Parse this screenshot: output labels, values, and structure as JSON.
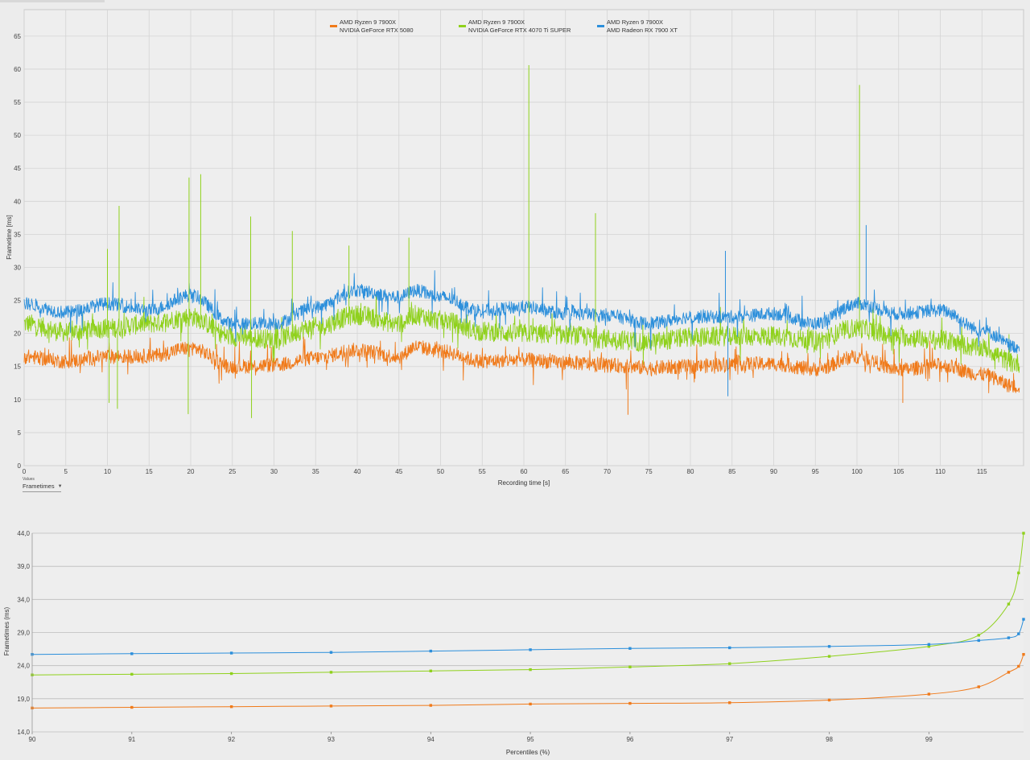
{
  "colors": {
    "orange": "#f07a1a",
    "green": "#8fd11c",
    "blue": "#2c8fdb",
    "grid": "#d4d4d4",
    "plot_bg": "#eeeeee"
  },
  "values_control": {
    "label": "Values",
    "selected": "Frametimes",
    "caret_icon": "chevron-down-icon"
  },
  "chart_data": [
    {
      "type": "line",
      "xlabel": "Recording time [s]",
      "ylabel": "Frametime [ms]",
      "xlim": [
        0,
        120
      ],
      "ylim": [
        0,
        69
      ],
      "x_ticks": [
        0,
        5,
        10,
        15,
        20,
        25,
        30,
        35,
        40,
        45,
        50,
        55,
        60,
        65,
        70,
        75,
        80,
        85,
        90,
        95,
        100,
        105,
        110,
        115
      ],
      "y_ticks": [
        0,
        5,
        10,
        15,
        20,
        25,
        30,
        35,
        40,
        45,
        50,
        55,
        60,
        65
      ],
      "grid": true,
      "legend_position": "top-center",
      "series": [
        {
          "name": "AMD Ryzen 9 7900X\nNVIDIA GeForce RTX 5080",
          "color": "#f07a1a",
          "x": [
            0,
            5,
            10,
            15,
            20,
            25,
            30,
            35,
            40,
            45,
            47,
            50,
            55,
            60,
            65,
            70,
            75,
            80,
            85,
            90,
            95,
            100,
            105,
            110,
            115,
            119
          ],
          "y": [
            16.5,
            15.8,
            16.5,
            16.6,
            17.8,
            15.0,
            15.2,
            16.3,
            17.5,
            16.5,
            18.0,
            17.3,
            15.8,
            16.0,
            15.6,
            15.2,
            14.8,
            15.0,
            15.4,
            15.4,
            14.6,
            16.5,
            14.5,
            15.2,
            13.8,
            12.0
          ]
        },
        {
          "name": "AMD Ryzen 9 7900X\nNVIDIA GeForce RTX 4070 Ti SUPER",
          "color": "#8fd11c",
          "x": [
            0,
            5,
            10,
            15,
            20,
            25,
            30,
            35,
            40,
            45,
            47,
            50,
            55,
            60,
            65,
            70,
            75,
            80,
            85,
            90,
            95,
            100,
            105,
            110,
            115,
            119
          ],
          "y": [
            21.5,
            20.2,
            20.8,
            21.5,
            22.5,
            19.5,
            19.2,
            21.0,
            22.8,
            21.5,
            22.8,
            22.0,
            20.3,
            20.0,
            19.8,
            19.2,
            18.7,
            19.4,
            19.6,
            19.6,
            19.0,
            20.8,
            19.5,
            19.0,
            17.8,
            15.5
          ]
        },
        {
          "name": "AMD Ryzen 9 7900X\nAMD Radeon RX 7900 XT",
          "color": "#2c8fdb",
          "x": [
            0,
            5,
            10,
            15,
            20,
            25,
            30,
            35,
            40,
            45,
            47,
            50,
            55,
            60,
            65,
            70,
            75,
            80,
            85,
            90,
            95,
            100,
            105,
            110,
            115,
            119
          ],
          "y": [
            24.5,
            23.2,
            24.5,
            23.5,
            25.8,
            21.5,
            21.5,
            24.0,
            26.5,
            25.5,
            26.5,
            25.5,
            23.5,
            24.0,
            23.0,
            22.8,
            21.5,
            22.5,
            22.5,
            23.0,
            21.5,
            24.5,
            23.0,
            23.5,
            20.5,
            18.0
          ]
        }
      ],
      "spikes": [
        {
          "series": 1,
          "x": 10.0,
          "y": 32.8
        },
        {
          "series": 1,
          "x": 11.4,
          "y": 39.3
        },
        {
          "series": 1,
          "x": 19.8,
          "y": 43.6
        },
        {
          "series": 1,
          "x": 21.2,
          "y": 44.1
        },
        {
          "series": 1,
          "x": 27.2,
          "y": 37.7
        },
        {
          "series": 1,
          "x": 32.2,
          "y": 35.5
        },
        {
          "series": 1,
          "x": 39.0,
          "y": 33.3
        },
        {
          "series": 1,
          "x": 46.2,
          "y": 34.5
        },
        {
          "series": 1,
          "x": 60.6,
          "y": 60.6
        },
        {
          "series": 1,
          "x": 68.6,
          "y": 38.2
        },
        {
          "series": 1,
          "x": 100.3,
          "y": 57.6
        },
        {
          "series": 2,
          "x": 101.1,
          "y": 36.4
        },
        {
          "series": 2,
          "x": 84.2,
          "y": 32.5
        }
      ],
      "dips": [
        {
          "series": 1,
          "x": 10.2,
          "y": 9.5
        },
        {
          "series": 1,
          "x": 11.2,
          "y": 8.6
        },
        {
          "series": 1,
          "x": 19.7,
          "y": 7.8
        },
        {
          "series": 1,
          "x": 27.3,
          "y": 7.2
        },
        {
          "series": 0,
          "x": 72.5,
          "y": 7.7
        },
        {
          "series": 0,
          "x": 105.5,
          "y": 9.5
        },
        {
          "series": 2,
          "x": 84.5,
          "y": 10.5
        }
      ]
    },
    {
      "type": "line",
      "xlabel": "Percentiles (%)",
      "ylabel": "Frametimes (ms)",
      "xlim": [
        90,
        99.95
      ],
      "ylim": [
        14.0,
        44.0
      ],
      "x_ticks": [
        90,
        91,
        92,
        93,
        94,
        95,
        96,
        97,
        98,
        99
      ],
      "y_ticks": [
        "14,0",
        "19,0",
        "24,0",
        "29,0",
        "34,0",
        "39,0",
        "44,0"
      ],
      "grid": true,
      "series": [
        {
          "name": "AMD Ryzen 9 7900X\nNVIDIA GeForce RTX 5080",
          "color": "#f07a1a",
          "x": [
            90,
            91,
            92,
            93,
            94,
            95,
            96,
            97,
            98,
            99,
            99.5,
            99.8,
            99.9,
            99.95
          ],
          "y": [
            17.6,
            17.7,
            17.8,
            17.9,
            18.0,
            18.2,
            18.3,
            18.4,
            18.8,
            19.7,
            20.8,
            23.0,
            23.9,
            25.7
          ]
        },
        {
          "name": "AMD Ryzen 9 7900X\nNVIDIA GeForce RTX 4070 Ti SUPER",
          "color": "#8fd11c",
          "x": [
            90,
            91,
            92,
            93,
            94,
            95,
            96,
            97,
            98,
            99,
            99.5,
            99.8,
            99.9,
            99.95
          ],
          "y": [
            22.6,
            22.7,
            22.8,
            23.0,
            23.2,
            23.4,
            23.8,
            24.3,
            25.4,
            26.9,
            28.6,
            33.3,
            38.0,
            44.0
          ]
        },
        {
          "name": "AMD Ryzen 9 7900X\nAMD Radeon RX 7900 XT",
          "color": "#2c8fdb",
          "x": [
            90,
            91,
            92,
            93,
            94,
            95,
            96,
            97,
            98,
            99,
            99.5,
            99.8,
            99.9,
            99.95
          ],
          "y": [
            25.7,
            25.8,
            25.9,
            26.0,
            26.2,
            26.4,
            26.6,
            26.7,
            26.9,
            27.2,
            27.8,
            28.2,
            28.8,
            31.0
          ]
        }
      ]
    }
  ]
}
